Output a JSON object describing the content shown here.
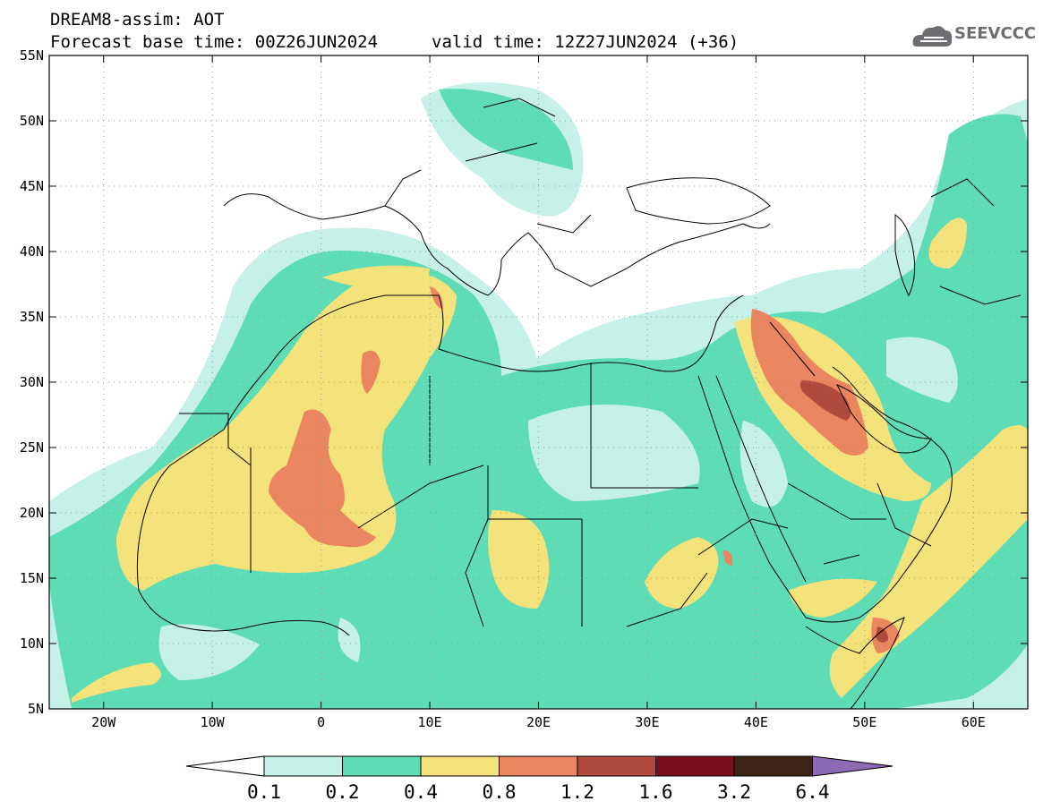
{
  "header": {
    "line1": "DREAM8-assim: AOT",
    "line2": "Forecast base time: 00Z26JUN2024",
    "valid": "valid time: 12Z27JUN2024 (+36)",
    "logo_text": "SEEVCCC"
  },
  "map": {
    "lon_range": [
      -25,
      65
    ],
    "lat_range": [
      5,
      55
    ],
    "lat_ticks": [
      "55N",
      "50N",
      "45N",
      "40N",
      "35N",
      "30N",
      "25N",
      "20N",
      "15N",
      "10N",
      "5N"
    ],
    "lon_ticks": [
      "20W",
      "10W",
      "0",
      "10E",
      "20E",
      "30E",
      "40E",
      "50E",
      "60E"
    ],
    "grid": true
  },
  "colorbar": {
    "labels": [
      "0.1",
      "0.2",
      "0.4",
      "0.8",
      "1.2",
      "1.6",
      "3.2",
      "6.4"
    ],
    "colors": [
      "#c6f1e9",
      "#5ddcb6",
      "#f4e27b",
      "#e9865f",
      "#b04a3c",
      "#7b0d1f",
      "#3d2416",
      "#8c6ab4"
    ]
  },
  "colors": {
    "c1": "#c6f1e9",
    "c2": "#5ddcb6",
    "c3": "#f4e27b",
    "c4": "#e9865f",
    "c5": "#b04a3c",
    "c6": "#7b0d1f"
  }
}
